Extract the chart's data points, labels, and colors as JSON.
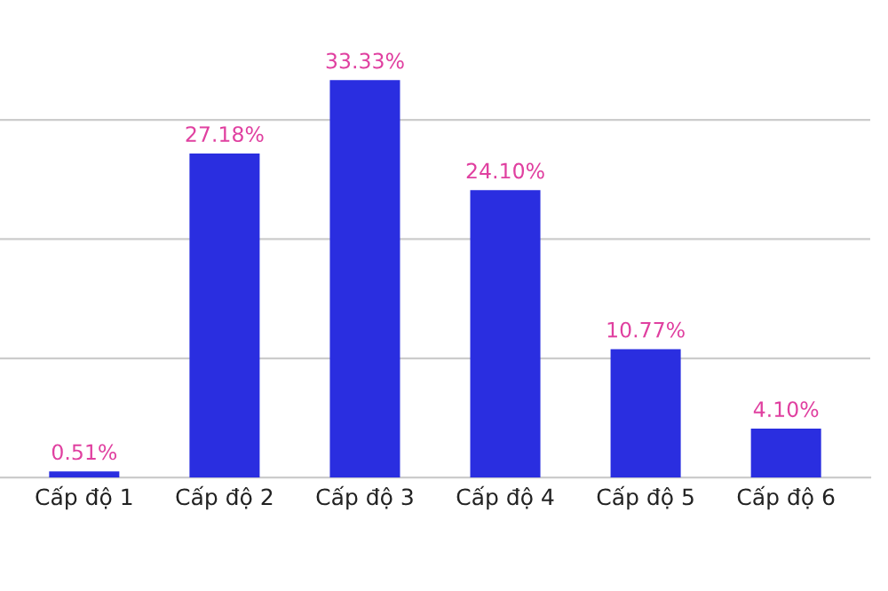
{
  "chart_data": {
    "type": "bar",
    "categories": [
      "Cấp độ 1",
      "Cấp độ 2",
      "Cấp độ 3",
      "Cấp độ 4",
      "Cấp độ 5",
      "Cấp độ 6"
    ],
    "values": [
      0.51,
      27.18,
      33.33,
      24.1,
      10.77,
      4.1
    ],
    "value_labels": [
      "0.51%",
      "27.18%",
      "33.33%",
      "24.10%",
      "10.77%",
      "4.10%"
    ],
    "color": "#2a2ee0",
    "yticks": [
      0,
      10,
      20,
      30
    ],
    "tick_labels": "x",
    "grid": "y"
  }
}
